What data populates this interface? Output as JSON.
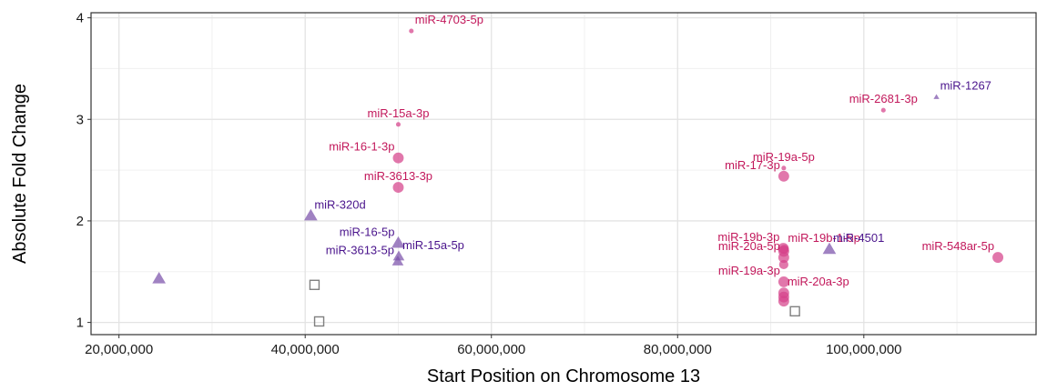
{
  "chart_data": {
    "type": "scatter",
    "xlabel": "Start Position on Chromosome 13",
    "ylabel": "Absolute Fold Change",
    "xlim": [
      17000000,
      118500000
    ],
    "ylim": [
      0.88,
      4.05
    ],
    "x_ticks": [
      20000000,
      40000000,
      60000000,
      80000000,
      100000000
    ],
    "x_tick_labels": [
      "20,000,000",
      "40,000,000",
      "60,000,000",
      "80,000,000",
      "100,000,000"
    ],
    "y_ticks": [
      1,
      2,
      3,
      4
    ],
    "y_tick_labels": [
      "1",
      "2",
      "3",
      "4"
    ],
    "grid": true,
    "colors": {
      "pink": "#d6428a",
      "purple": "#7b52ab",
      "gray": "#808080",
      "pink_text": "#c2185b",
      "purple_text": "#4a148c"
    },
    "points": [
      {
        "x": 24300000,
        "y": 1.43,
        "shape": "triangle",
        "color": "purple",
        "size": 7,
        "label": ""
      },
      {
        "x": 40600000,
        "y": 2.05,
        "shape": "triangle",
        "color": "purple",
        "size": 7,
        "label": "miR-320d",
        "label_anchor": "start"
      },
      {
        "x": 41000000,
        "y": 1.37,
        "shape": "square",
        "color": "gray",
        "size": 5,
        "label": ""
      },
      {
        "x": 41500000,
        "y": 1.01,
        "shape": "square",
        "color": "gray",
        "size": 5,
        "label": ""
      },
      {
        "x": 50000000,
        "y": 1.78,
        "shape": "triangle",
        "color": "purple",
        "size": 7,
        "label": "miR-16-5p",
        "label_anchor": "end"
      },
      {
        "x": 50050000,
        "y": 1.65,
        "shape": "triangle",
        "color": "purple",
        "size": 6,
        "label": "miR-15a-5p",
        "label_anchor": "start"
      },
      {
        "x": 49950000,
        "y": 1.6,
        "shape": "triangle",
        "color": "purple",
        "size": 6,
        "label": "miR-3613-5p",
        "label_anchor": "end"
      },
      {
        "x": 50000000,
        "y": 2.95,
        "shape": "circle",
        "color": "pink",
        "size": 3,
        "label": "miR-15a-3p",
        "label_anchor": "middle"
      },
      {
        "x": 50000000,
        "y": 2.62,
        "shape": "circle",
        "color": "pink",
        "size": 7,
        "label": "miR-16-1-3p",
        "label_anchor": "end"
      },
      {
        "x": 50000000,
        "y": 2.33,
        "shape": "circle",
        "color": "pink",
        "size": 7,
        "label": "miR-3613-3p",
        "label_anchor": "middle"
      },
      {
        "x": 51400000,
        "y": 3.87,
        "shape": "circle",
        "color": "pink",
        "size": 3,
        "label": "miR-4703-5p",
        "label_anchor": "start"
      },
      {
        "x": 91400000,
        "y": 2.52,
        "shape": "circle",
        "color": "pink",
        "size": 3,
        "label": "miR-19a-5p",
        "label_anchor": "middle"
      },
      {
        "x": 91400000,
        "y": 2.44,
        "shape": "circle",
        "color": "pink",
        "size": 7,
        "label": "miR-17-3p",
        "label_anchor": "end"
      },
      {
        "x": 91350000,
        "y": 1.73,
        "shape": "circle",
        "color": "pink",
        "size": 7,
        "label": "miR-19b-3p",
        "label_anchor": "end"
      },
      {
        "x": 91400000,
        "y": 1.7,
        "shape": "circle",
        "color": "pink",
        "size": 7,
        "label": "",
        "label_anchor": "start"
      },
      {
        "x": 91450000,
        "y": 1.72,
        "shape": "circle",
        "color": "pink",
        "size": 6,
        "label": "miR-19b-1-5p",
        "label_anchor": "start"
      },
      {
        "x": 91400000,
        "y": 1.64,
        "shape": "circle",
        "color": "pink",
        "size": 7,
        "label": "miR-20a-5p",
        "label_anchor": "end"
      },
      {
        "x": 91400000,
        "y": 1.57,
        "shape": "circle",
        "color": "pink",
        "size": 6,
        "label": "",
        "label_anchor": "start"
      },
      {
        "x": 91400000,
        "y": 1.4,
        "shape": "circle",
        "color": "pink",
        "size": 7,
        "label": "miR-19a-3p",
        "label_anchor": "end"
      },
      {
        "x": 91400000,
        "y": 1.29,
        "shape": "circle",
        "color": "pink",
        "size": 7,
        "label": "miR-20a-3p",
        "label_anchor": "start"
      },
      {
        "x": 91400000,
        "y": 1.25,
        "shape": "circle",
        "color": "pink",
        "size": 7,
        "label": ""
      },
      {
        "x": 91400000,
        "y": 1.21,
        "shape": "circle",
        "color": "pink",
        "size": 7,
        "label": ""
      },
      {
        "x": 92600000,
        "y": 1.11,
        "shape": "square",
        "color": "gray",
        "size": 5,
        "label": ""
      },
      {
        "x": 96300000,
        "y": 1.72,
        "shape": "triangle",
        "color": "purple",
        "size": 7,
        "label": "miR-4501",
        "label_anchor": "start"
      },
      {
        "x": 102100000,
        "y": 3.09,
        "shape": "circle",
        "color": "pink",
        "size": 3,
        "label": "miR-2681-3p",
        "label_anchor": "middle"
      },
      {
        "x": 107800000,
        "y": 3.22,
        "shape": "triangle",
        "color": "purple",
        "size": 3,
        "label": "miR-1267",
        "label_anchor": "start"
      },
      {
        "x": 114400000,
        "y": 1.64,
        "shape": "circle",
        "color": "pink",
        "size": 7,
        "label": "miR-548ar-5p",
        "label_anchor": "end"
      }
    ]
  }
}
